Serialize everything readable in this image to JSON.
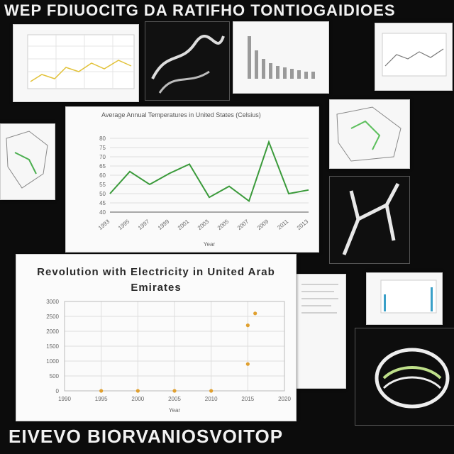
{
  "banner": {
    "top_text": "WEP FDIUOCITG DA RATIFHO TONTIOGAIDIOES",
    "bottom_text": "EIVEVO BIORVANIOSVOITOP"
  },
  "colors": {
    "background": "#0c0c0c",
    "line_series": "#3a9a3a",
    "scatter_points": "#e0a030",
    "grid": "#dddddd"
  },
  "main_chart": {
    "title": "Average Annual Temperatures in United States (Celsius)",
    "xlabel": "Year"
  },
  "scatter_chart": {
    "title": "Revolution with Electricity in United Arab Emirates",
    "xlabel": "Year"
  },
  "chart_data": [
    {
      "type": "line",
      "title": "Average Annual Temperatures in United States (Celsius)",
      "xlabel": "Year",
      "ylabel": "",
      "categories": [
        "1993",
        "1995",
        "1997",
        "1999",
        "2001",
        "2003",
        "2005",
        "2007",
        "2009",
        "2011",
        "2013"
      ],
      "series": [
        {
          "values": [
            50,
            62,
            55,
            61,
            66,
            48,
            54,
            46,
            78,
            50,
            52
          ]
        }
      ],
      "y_ticks": [
        "40",
        "45",
        "50",
        "55",
        "60",
        "65",
        "70",
        "75",
        "80"
      ],
      "ylim": [
        40,
        80
      ],
      "grid": true
    },
    {
      "type": "scatter",
      "title": "Revolution with Electricity in United Arab Emirates",
      "xlabel": "Year",
      "ylabel": "",
      "x_ticks": [
        "1990",
        "1995",
        "2000",
        "2005",
        "2010",
        "2015",
        "2020"
      ],
      "y_ticks": [
        "0",
        "500",
        "1000",
        "1500",
        "2000",
        "2500",
        "3000"
      ],
      "xlim": [
        1990,
        2020
      ],
      "ylim": [
        0,
        3000
      ],
      "points": [
        {
          "x": 1995,
          "y": 0
        },
        {
          "x": 2000,
          "y": 0
        },
        {
          "x": 2005,
          "y": 0
        },
        {
          "x": 2010,
          "y": 0
        },
        {
          "x": 2015,
          "y": 900
        },
        {
          "x": 2015,
          "y": 2200
        },
        {
          "x": 2016,
          "y": 2600
        }
      ],
      "grid": true
    }
  ]
}
